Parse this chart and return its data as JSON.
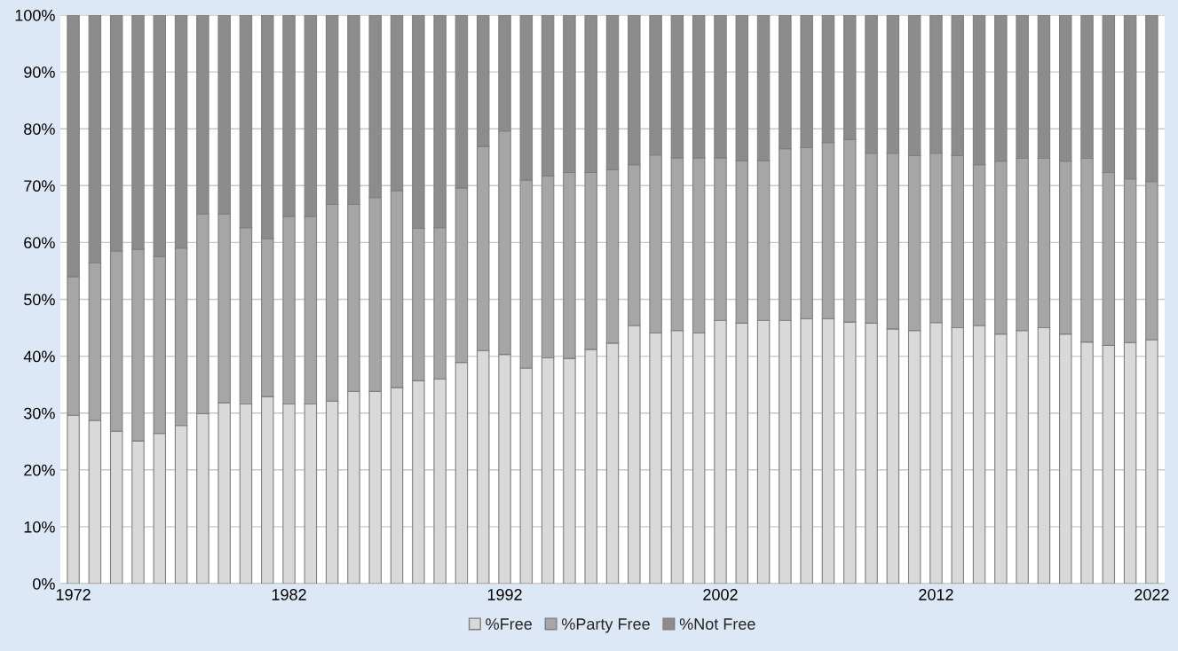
{
  "chart_data": {
    "type": "bar",
    "stacked": true,
    "categories": [
      "1972",
      null,
      null,
      null,
      null,
      null,
      null,
      null,
      null,
      null,
      "1982",
      null,
      null,
      null,
      null,
      null,
      null,
      null,
      null,
      null,
      "1992",
      null,
      null,
      null,
      null,
      null,
      null,
      null,
      null,
      null,
      "2002",
      null,
      null,
      null,
      null,
      null,
      null,
      null,
      null,
      null,
      "2012",
      null,
      null,
      null,
      null,
      null,
      null,
      null,
      null,
      null,
      "2022"
    ],
    "series": [
      {
        "name": "%Free",
        "color": "#d9d9d9",
        "values": [
          29.6,
          28.7,
          26.8,
          25.1,
          26.4,
          27.8,
          29.9,
          31.8,
          31.6,
          32.9,
          31.6,
          31.6,
          32.1,
          33.8,
          33.8,
          34.5,
          35.7,
          36.0,
          38.9,
          41.0,
          40.3,
          37.9,
          39.7,
          39.6,
          41.2,
          42.3,
          45.4,
          44.1,
          44.5,
          44.1,
          46.3,
          45.8,
          46.3,
          46.3,
          46.6,
          46.6,
          46.0,
          45.8,
          44.8,
          44.5,
          45.9,
          45.0,
          45.4,
          43.9,
          44.5,
          45.0,
          43.9,
          42.5,
          41.9,
          42.4,
          42.9
        ]
      },
      {
        "name": "%Party Free",
        "color": "#a6a6a6",
        "values": [
          24.4,
          27.7,
          31.7,
          33.7,
          31.1,
          31.2,
          35.1,
          33.2,
          31.0,
          27.8,
          33.0,
          33.0,
          34.6,
          32.9,
          34.1,
          34.6,
          26.8,
          26.6,
          30.7,
          35.9,
          39.3,
          33.1,
          32.0,
          32.7,
          31.1,
          30.5,
          28.3,
          31.3,
          30.4,
          30.8,
          28.6,
          28.6,
          28.1,
          30.2,
          30.1,
          31.0,
          32.1,
          29.9,
          30.9,
          30.8,
          29.8,
          30.3,
          28.3,
          30.4,
          30.3,
          29.8,
          30.4,
          32.3,
          30.4,
          28.8,
          27.8
        ]
      },
      {
        "name": "%Not Free",
        "color": "#8c8c8c",
        "values": [
          46.0,
          43.6,
          41.5,
          41.2,
          42.5,
          41.0,
          35.0,
          35.0,
          37.4,
          39.3,
          35.4,
          35.4,
          33.3,
          33.3,
          32.1,
          30.9,
          37.5,
          37.4,
          30.4,
          23.1,
          20.4,
          29.0,
          28.3,
          27.7,
          27.7,
          27.2,
          26.3,
          24.6,
          25.1,
          25.1,
          25.1,
          25.6,
          25.6,
          23.5,
          23.3,
          22.4,
          21.9,
          24.3,
          24.3,
          24.7,
          24.3,
          24.7,
          26.3,
          25.7,
          25.2,
          25.2,
          25.7,
          25.2,
          27.7,
          28.8,
          29.3
        ]
      }
    ],
    "ylim": [
      0,
      100
    ],
    "yticks": [
      {
        "value": 0,
        "label": "0%"
      },
      {
        "value": 10,
        "label": "10%"
      },
      {
        "value": 20,
        "label": "20%"
      },
      {
        "value": 30,
        "label": "30%"
      },
      {
        "value": 40,
        "label": "40%"
      },
      {
        "value": 50,
        "label": "50%"
      },
      {
        "value": 60,
        "label": "60%"
      },
      {
        "value": 70,
        "label": "70%"
      },
      {
        "value": 80,
        "label": "80%"
      },
      {
        "value": 90,
        "label": "90%"
      },
      {
        "value": 100,
        "label": "100%"
      }
    ],
    "grid": "y",
    "legend": "bottom"
  }
}
